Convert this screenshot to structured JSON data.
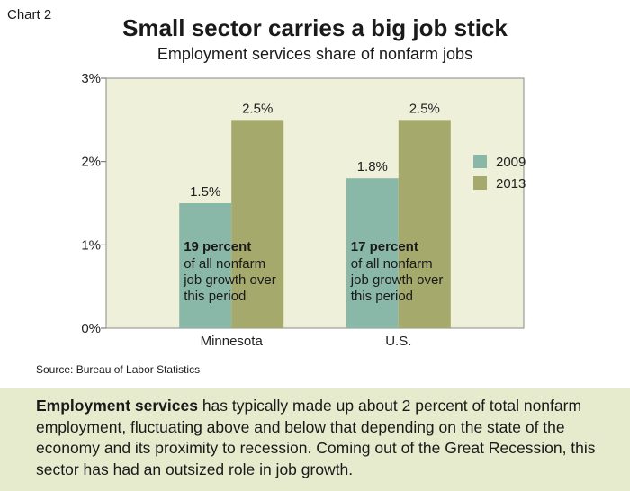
{
  "chart_label": "Chart 2",
  "footer": {
    "bold": "Employment services",
    "text": " has typically made up about 2 percent of total nonfarm employment, fluctuating above and below that depending on the state of the economy and its proximity to recession. Coming out of the Great Recession, this sector has had an outsized role in job growth."
  },
  "source": "Source: Bureau of Labor Statistics",
  "chart_data": {
    "type": "bar",
    "title": "Small sector carries a big job stick",
    "subtitle": "Employment services share of nonfarm jobs",
    "categories": [
      "Minnesota",
      "U.S."
    ],
    "series": [
      {
        "name": "2009",
        "values": [
          1.5,
          1.8
        ],
        "labels": [
          "1.5%",
          "1.8%"
        ],
        "color": "#8ab8a8"
      },
      {
        "name": "2013",
        "values": [
          2.5,
          2.5
        ],
        "labels": [
          "2.5%",
          "2.5%"
        ],
        "color": "#a5a96c"
      }
    ],
    "ylim": [
      0,
      3
    ],
    "yticks": [
      0,
      1,
      2,
      3
    ],
    "ytick_labels": [
      "0%",
      "1%",
      "2%",
      "3%"
    ],
    "xlabel": "",
    "ylabel": "",
    "legend_position": "right",
    "plot_background": "#eef0da",
    "annotations": [
      {
        "bold": "19 percent",
        "lines": [
          "of all nonfarm",
          "job growth over",
          "this period"
        ]
      },
      {
        "bold": "17 percent",
        "lines": [
          "of all nonfarm",
          "job growth over",
          "this period"
        ]
      }
    ]
  }
}
